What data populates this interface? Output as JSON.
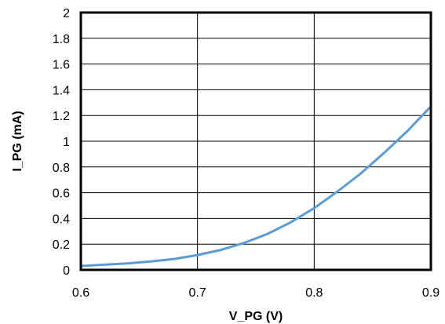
{
  "chart_data": {
    "type": "line",
    "title": "",
    "xlabel": "V_PG (V)",
    "ylabel": "I_PG (mA)",
    "xlim": [
      0.6,
      0.9
    ],
    "ylim": [
      0,
      2
    ],
    "xticks": [
      0.6,
      0.7,
      0.8,
      0.9
    ],
    "xtick_labels": [
      "0.6",
      "0.7",
      "0.8",
      "0.9"
    ],
    "yticks": [
      0,
      0.2,
      0.4,
      0.6,
      0.8,
      1,
      1.2,
      1.4,
      1.6,
      1.8,
      2
    ],
    "ytick_labels": [
      "0",
      "0.2",
      "0.4",
      "0.6",
      "0.8",
      "1",
      "1.2",
      "1.4",
      "1.6",
      "1.8",
      "2"
    ],
    "grid": true,
    "series": [
      {
        "color": "#5B9BD5",
        "x": [
          0.6,
          0.62,
          0.64,
          0.66,
          0.68,
          0.7,
          0.72,
          0.74,
          0.76,
          0.78,
          0.8,
          0.82,
          0.84,
          0.86,
          0.88,
          0.9
        ],
        "y": [
          0.03,
          0.04,
          0.05,
          0.065,
          0.085,
          0.115,
          0.155,
          0.21,
          0.28,
          0.37,
          0.48,
          0.61,
          0.75,
          0.91,
          1.08,
          1.27
        ]
      }
    ]
  }
}
